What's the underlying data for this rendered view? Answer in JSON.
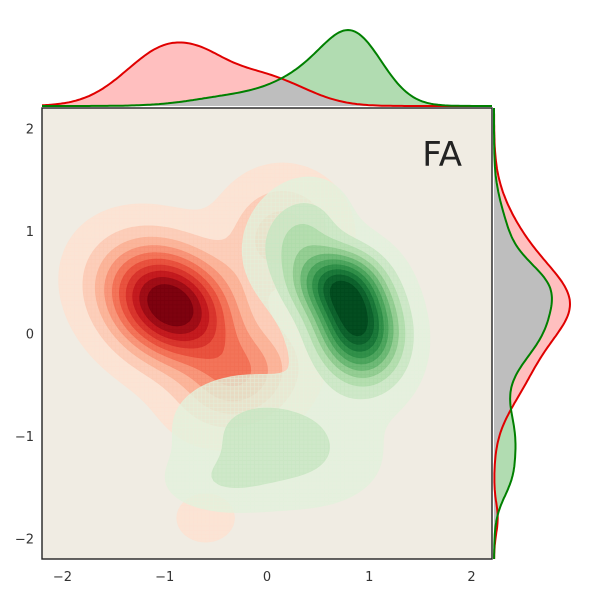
{
  "chart_data": {
    "type": "joint-kde",
    "panel_label": "FA",
    "xlim": [
      -2.2,
      2.2
    ],
    "ylim": [
      -2.2,
      2.2
    ],
    "xticks": [
      -2,
      -1,
      0,
      1,
      2
    ],
    "yticks": [
      -2,
      -1,
      0,
      1,
      2
    ],
    "xtick_labels": [
      "−2",
      "−1",
      "0",
      "1",
      "2"
    ],
    "ytick_labels": [
      "−2",
      "−1",
      "0",
      "1",
      "2"
    ],
    "grid": false,
    "background_color": "#f0ece3",
    "marginal_overlap_color": "#bebebe",
    "series": [
      {
        "color": "#e00000",
        "fill": "#ffb8b8",
        "modes": [
          {
            "x": -0.95,
            "y": 0.28,
            "sx": 0.42,
            "sy": 0.38,
            "rho": -0.25,
            "w": 1.0
          },
          {
            "x": 0.15,
            "y": 0.95,
            "sx": 0.35,
            "sy": 0.35,
            "rho": 0.0,
            "w": 0.28
          },
          {
            "x": -0.25,
            "y": -0.45,
            "sx": 0.38,
            "sy": 0.32,
            "rho": 0.2,
            "w": 0.35
          },
          {
            "x": -0.6,
            "y": -1.8,
            "sx": 0.18,
            "sy": 0.15,
            "rho": 0.0,
            "w": 0.12
          }
        ]
      },
      {
        "color": "#008000",
        "fill": "#a9d8a9",
        "modes": [
          {
            "x": 0.88,
            "y": 0.08,
            "sx": 0.28,
            "sy": 0.35,
            "rho": -0.15,
            "w": 1.0
          },
          {
            "x": 0.65,
            "y": 0.5,
            "sx": 0.28,
            "sy": 0.22,
            "rho": 0.0,
            "w": 0.55
          },
          {
            "x": 0.3,
            "y": 0.95,
            "sx": 0.28,
            "sy": 0.3,
            "rho": 0.2,
            "w": 0.25
          },
          {
            "x": 0.1,
            "y": -1.05,
            "sx": 0.55,
            "sy": 0.35,
            "rho": -0.2,
            "w": 0.22
          },
          {
            "x": -0.45,
            "y": -1.45,
            "sx": 0.35,
            "sy": 0.18,
            "rho": 0.0,
            "w": 0.1
          }
        ]
      }
    ]
  }
}
